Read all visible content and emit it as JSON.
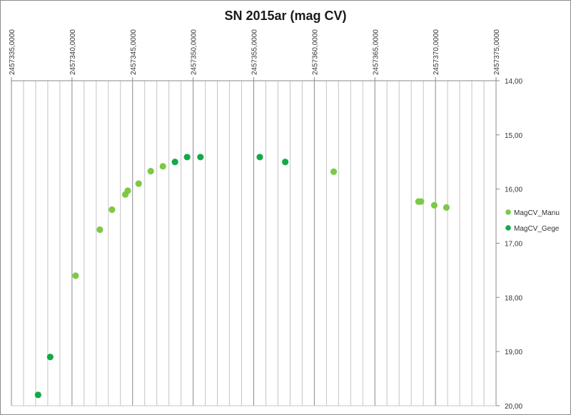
{
  "chart_data": {
    "type": "scatter",
    "title": "SN 2015ar (mag CV)",
    "xlabel": "",
    "ylabel": "",
    "xlim": [
      2457335,
      2457375
    ],
    "ylim": [
      14,
      20
    ],
    "y_reversed": true,
    "x_major_step": 5,
    "x_minor_step": 1,
    "y_step": 1,
    "x_tick_labels": [
      "2457335,0000",
      "2457340,0000",
      "2457345,0000",
      "2457350,0000",
      "2457355,0000",
      "2457360,0000",
      "2457365,0000",
      "2457370,0000",
      "2457375,0000"
    ],
    "x_tick_values": [
      2457335,
      2457340,
      2457345,
      2457350,
      2457355,
      2457360,
      2457365,
      2457370,
      2457375
    ],
    "y_tick_labels": [
      "14,00",
      "15,00",
      "16,00",
      "17,00",
      "18,00",
      "19,00",
      "20,00"
    ],
    "y_tick_values": [
      14,
      15,
      16,
      17,
      18,
      19,
      20
    ],
    "grid": "vertical",
    "legend_position": "right",
    "series": [
      {
        "name": "MagCV_Manu",
        "color": "#7dc945",
        "points": [
          [
            2457340.3,
            17.6
          ],
          [
            2457342.3,
            16.75
          ],
          [
            2457343.3,
            16.38
          ],
          [
            2457344.4,
            16.1
          ],
          [
            2457344.6,
            16.03
          ],
          [
            2457345.5,
            15.9
          ],
          [
            2457346.5,
            15.67
          ],
          [
            2457347.5,
            15.58
          ],
          [
            2457361.6,
            15.68
          ],
          [
            2457368.6,
            16.23
          ],
          [
            2457368.8,
            16.23
          ],
          [
            2457369.9,
            16.3
          ],
          [
            2457370.9,
            16.34
          ]
        ]
      },
      {
        "name": "MagCV_Gege",
        "color": "#14a84a",
        "points": [
          [
            2457337.2,
            19.8
          ],
          [
            2457338.2,
            19.1
          ],
          [
            2457348.5,
            15.5
          ],
          [
            2457349.5,
            15.41
          ],
          [
            2457350.6,
            15.41
          ],
          [
            2457355.5,
            15.41
          ],
          [
            2457357.6,
            15.5
          ]
        ]
      }
    ]
  }
}
